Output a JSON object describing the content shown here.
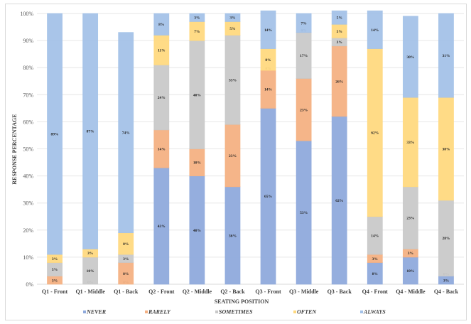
{
  "chart_data": {
    "type": "bar",
    "stacked": true,
    "percent": true,
    "title": "",
    "xlabel": "SEATING POSITION",
    "ylabel": "RESPONSE PERCENTAGE",
    "ylim": [
      0,
      100
    ],
    "yticks": [
      "0%",
      "10%",
      "20%",
      "30%",
      "40%",
      "50%",
      "60%",
      "70%",
      "80%",
      "90%",
      "100%"
    ],
    "grid": true,
    "legend_position": "bottom",
    "categories": [
      "Q1 - Front",
      "Q1 - Middle",
      "Q1 - Back",
      "Q2 - Front",
      "Q2 - Middle",
      "Q2 - Back",
      "Q3 - Front",
      "Q3 - Middle",
      "Q3 - Back",
      "Q4 - Front",
      "Q4 - Middle",
      "Q4 - Back"
    ],
    "series": [
      {
        "name": "NEVER",
        "color": "#8faadc",
        "values": [
          0,
          0,
          0,
          43,
          40,
          36,
          65,
          53,
          62,
          8,
          10,
          3
        ],
        "labels": [
          "0%",
          "0%",
          "0%",
          "43%",
          "40%",
          "36%",
          "65%",
          "53%",
          "62%",
          "8%",
          "10%",
          "3%"
        ]
      },
      {
        "name": "RARELY",
        "color": "#f4b183",
        "values": [
          3,
          0,
          8,
          14,
          10,
          23,
          14,
          23,
          26,
          3,
          3,
          0
        ],
        "labels": [
          "3%",
          "",
          "8%",
          "14%",
          "10%",
          "23%",
          "14%",
          "23%",
          "26%",
          "3%",
          "3%",
          "0%"
        ]
      },
      {
        "name": "SOMETIMES",
        "color": "#c9c9c9",
        "values": [
          5,
          10,
          3,
          24,
          40,
          33,
          0,
          17,
          3,
          14,
          23,
          28
        ],
        "labels": [
          "5%",
          "10%",
          "3%",
          "24%",
          "40%",
          "33%",
          "0%",
          "17%",
          "3%",
          "14%",
          "23%",
          "28%"
        ]
      },
      {
        "name": "OFTEN",
        "color": "#ffd97f",
        "values": [
          3,
          3,
          8,
          11,
          7,
          5,
          8,
          0,
          5,
          62,
          33,
          38
        ],
        "labels": [
          "3%",
          "3%",
          "8%",
          "11%",
          "7%",
          "5%",
          "8%",
          "0%",
          "5%",
          "62%",
          "33%",
          "38%"
        ]
      },
      {
        "name": "ALWAYS",
        "color": "#a4c2e8",
        "values": [
          89,
          87,
          74,
          8,
          3,
          3,
          14,
          7,
          5,
          14,
          30,
          31
        ],
        "labels": [
          "89%",
          "87%",
          "74%",
          "8%",
          "3%",
          "3%",
          "14%",
          "7%",
          "5%",
          "14%",
          "30%",
          "31%"
        ]
      }
    ]
  }
}
